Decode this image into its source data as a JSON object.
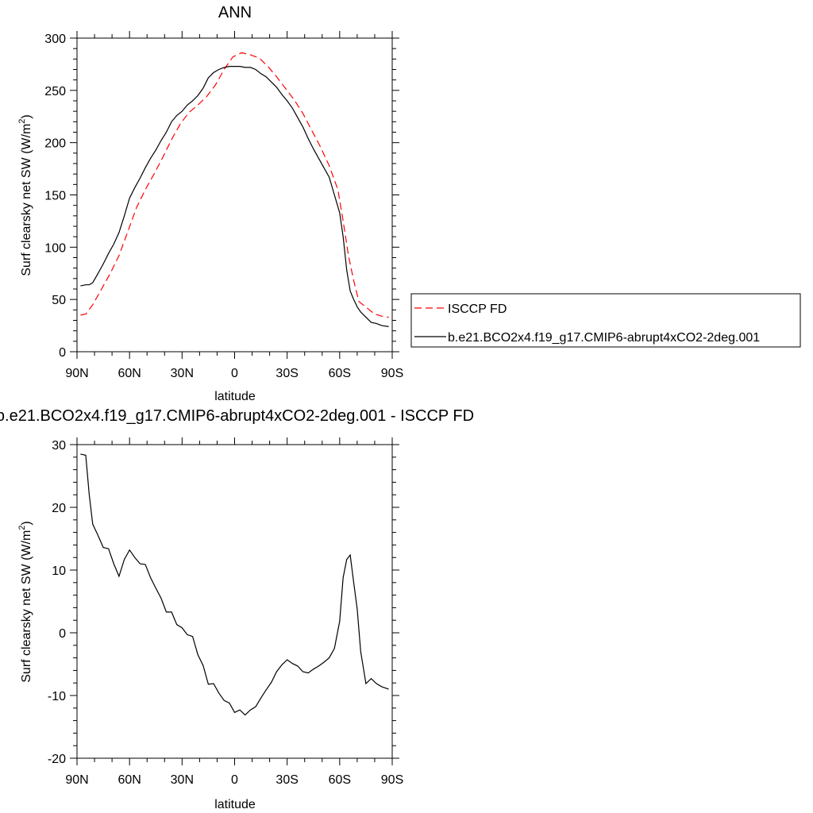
{
  "chart_data": [
    {
      "type": "line",
      "title": "ANN",
      "xlabel": "latitude",
      "ylabel": "Surf clearsky net SW (W/m",
      "ylabel_sup": "2",
      "ylabel_close": ")",
      "xlim": [
        90,
        -90
      ],
      "ylim": [
        0,
        300
      ],
      "xticks": [
        90,
        60,
        30,
        0,
        -30,
        -60,
        -90
      ],
      "xtick_labels": [
        "90N",
        "60N",
        "30N",
        "0",
        "30S",
        "60S",
        "90S"
      ],
      "yticks": [
        0,
        50,
        100,
        150,
        200,
        250,
        300
      ],
      "ytick_labels": [
        "0",
        "50",
        "100",
        "150",
        "200",
        "250",
        "300"
      ],
      "grid": false,
      "legend_position": "right",
      "series": [
        {
          "name": "ISCCP FD",
          "color": "#ff0000",
          "dash": "dashed",
          "x": [
            88,
            85,
            81,
            76,
            71,
            66,
            61,
            56,
            51,
            46,
            41,
            36,
            31,
            26,
            21,
            16,
            11,
            6,
            1,
            -4,
            -9,
            -14,
            -19,
            -24,
            -29,
            -34,
            -39,
            -44,
            -49,
            -54,
            -59,
            -62,
            -65,
            -68,
            -71,
            -74,
            -77,
            -80,
            -84,
            -88
          ],
          "y": [
            35,
            36,
            45,
            60,
            75,
            92,
            115,
            138,
            155,
            170,
            186,
            203,
            218,
            229,
            236,
            244,
            255,
            270,
            282,
            286,
            284,
            281,
            273,
            263,
            252,
            241,
            228,
            212,
            196,
            178,
            155,
            125,
            92,
            68,
            48,
            44,
            40,
            36,
            34,
            33
          ]
        },
        {
          "name": "b.e21.BCO2x4.f19_g17.CMIP6-abrupt4xCO2-2deg.001",
          "color": "#000000",
          "dash": "solid",
          "x": [
            88,
            85,
            83,
            81,
            78,
            75,
            72,
            69,
            66,
            63,
            60,
            57,
            54,
            51,
            48,
            45,
            42,
            39,
            36,
            33,
            30,
            27,
            24,
            21,
            18,
            15,
            12,
            9,
            6,
            3,
            0,
            -3,
            -6,
            -9,
            -12,
            -15,
            -18,
            -21,
            -24,
            -27,
            -30,
            -33,
            -36,
            -39,
            -42,
            -45,
            -48,
            -51,
            -54,
            -57,
            -60,
            -62,
            -64,
            -66,
            -68,
            -70,
            -72,
            -75,
            -78,
            -81,
            -84,
            -88
          ],
          "y": [
            63,
            64,
            64,
            66,
            75,
            84,
            94,
            103,
            114,
            130,
            147,
            157,
            166,
            176,
            185,
            193,
            202,
            210,
            220,
            226,
            230,
            236,
            240,
            245,
            252,
            262,
            267,
            270,
            272,
            273,
            273,
            273,
            272,
            272,
            270,
            266,
            263,
            258,
            253,
            246,
            240,
            233,
            224,
            215,
            204,
            194,
            185,
            176,
            167,
            150,
            133,
            110,
            78,
            58,
            50,
            43,
            38,
            33,
            28,
            27,
            25,
            24
          ]
        }
      ]
    },
    {
      "type": "line",
      "title": "b.e21.BCO2x4.f19_g17.CMIP6-abrupt4xCO2-2deg.001 - ISCCP FD",
      "xlabel": "latitude",
      "ylabel": "Surf clearsky net SW (W/m",
      "ylabel_sup": "2",
      "ylabel_close": ")",
      "xlim": [
        90,
        -90
      ],
      "ylim": [
        -20,
        30
      ],
      "xticks": [
        90,
        60,
        30,
        0,
        -30,
        -60,
        -90
      ],
      "xtick_labels": [
        "90N",
        "60N",
        "30N",
        "0",
        "30S",
        "60S",
        "90S"
      ],
      "yticks": [
        -20,
        -10,
        0,
        10,
        20,
        30
      ],
      "ytick_labels": [
        "-20",
        "-10",
        "0",
        "10",
        "20",
        "30"
      ],
      "grid": false,
      "series": [
        {
          "color": "#000000",
          "dash": "solid",
          "x": [
            88,
            85,
            83,
            81,
            78,
            75,
            72,
            69,
            66,
            63,
            60,
            57,
            54,
            51,
            48,
            45,
            42,
            39,
            36,
            33,
            30,
            27,
            24,
            21,
            18,
            15,
            12,
            9,
            6,
            3,
            0,
            -3,
            -6,
            -9,
            -12,
            -15,
            -18,
            -21,
            -24,
            -27,
            -30,
            -33,
            -36,
            -39,
            -42,
            -45,
            -48,
            -51,
            -54,
            -57,
            -60,
            -62,
            -64,
            -66,
            -68,
            -70,
            -72,
            -75,
            -78,
            -81,
            -84,
            -88
          ],
          "y": [
            28.5,
            28.3,
            22,
            17.3,
            15.5,
            13.6,
            13.4,
            11,
            9,
            11.7,
            13.2,
            12,
            11,
            10.9,
            8.8,
            7.1,
            5.5,
            3.3,
            3.3,
            1.3,
            0.8,
            -0.3,
            -0.6,
            -3.5,
            -5.2,
            -8.2,
            -8.1,
            -9.6,
            -10.8,
            -11.2,
            -12.7,
            -12.3,
            -13.1,
            -12.3,
            -11.8,
            -10.4,
            -9.1,
            -7.9,
            -6.2,
            -5.1,
            -4.3,
            -4.9,
            -5.3,
            -6.2,
            -6.4,
            -5.8,
            -5.3,
            -4.7,
            -4,
            -2.5,
            1.8,
            8.8,
            11.7,
            12.4,
            8,
            3.8,
            -3,
            -8.1,
            -7.3,
            -8.1,
            -8.6,
            -9
          ]
        }
      ]
    }
  ]
}
